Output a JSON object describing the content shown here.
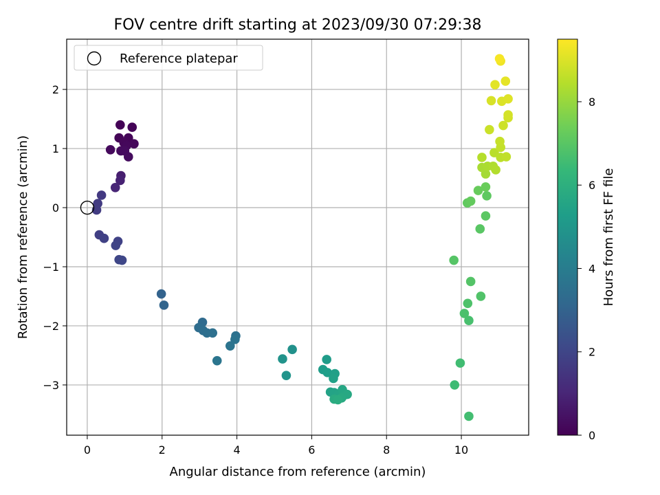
{
  "chart_data": {
    "type": "scatter",
    "title": "FOV centre drift starting at 2023/09/30 07:29:38",
    "xlabel": "Angular distance from reference (arcmin)",
    "ylabel": "Rotation from reference (arcmin)",
    "xlim": [
      -0.55,
      11.8
    ],
    "ylim": [
      -3.85,
      2.85
    ],
    "xticks": [
      0,
      2,
      4,
      6,
      8,
      10
    ],
    "yticks": [
      -3,
      -2,
      -1,
      0,
      1,
      2
    ],
    "grid": true,
    "legend": {
      "position": "top-left",
      "entries": [
        "Reference platepar"
      ]
    },
    "reference_point": {
      "x": 0,
      "y": 0
    },
    "colorbar": {
      "label": "Hours from first FF file",
      "range": [
        0,
        9.5
      ],
      "ticks": [
        0,
        2,
        4,
        6,
        8
      ],
      "colormap": [
        "#440154",
        "#482878",
        "#3e4989",
        "#31688e",
        "#26828e",
        "#1f9e89",
        "#35b779",
        "#6ece58",
        "#b5de2b",
        "#fde725"
      ]
    },
    "points": [
      {
        "x": 0.88,
        "y": 1.4,
        "t": 0.05
      },
      {
        "x": 1.2,
        "y": 1.36,
        "t": 0.08
      },
      {
        "x": 0.85,
        "y": 1.18,
        "t": 0.1
      },
      {
        "x": 1.1,
        "y": 1.18,
        "t": 0.12
      },
      {
        "x": 0.98,
        "y": 1.1,
        "t": 0.15
      },
      {
        "x": 1.25,
        "y": 1.08,
        "t": 0.18
      },
      {
        "x": 1.05,
        "y": 1.05,
        "t": 0.2
      },
      {
        "x": 0.62,
        "y": 0.98,
        "t": 0.22
      },
      {
        "x": 0.9,
        "y": 0.96,
        "t": 0.25
      },
      {
        "x": 1.0,
        "y": 0.96,
        "t": 0.28
      },
      {
        "x": 1.1,
        "y": 0.86,
        "t": 0.3
      },
      {
        "x": 0.9,
        "y": 0.54,
        "t": 0.8
      },
      {
        "x": 0.88,
        "y": 0.46,
        "t": 0.9
      },
      {
        "x": 0.75,
        "y": 0.34,
        "t": 1.0
      },
      {
        "x": 0.38,
        "y": 0.21,
        "t": 1.6
      },
      {
        "x": 0.28,
        "y": 0.07,
        "t": 1.65
      },
      {
        "x": 0.25,
        "y": -0.04,
        "t": 1.7
      },
      {
        "x": 0.32,
        "y": -0.46,
        "t": 1.8
      },
      {
        "x": 0.45,
        "y": -0.52,
        "t": 1.85
      },
      {
        "x": 0.82,
        "y": -0.57,
        "t": 1.9
      },
      {
        "x": 0.76,
        "y": -0.64,
        "t": 1.95
      },
      {
        "x": 0.85,
        "y": -0.88,
        "t": 2.0
      },
      {
        "x": 0.93,
        "y": -0.89,
        "t": 2.05
      },
      {
        "x": 1.98,
        "y": -1.46,
        "t": 3.0
      },
      {
        "x": 2.05,
        "y": -1.65,
        "t": 3.05
      },
      {
        "x": 3.08,
        "y": -1.94,
        "t": 3.3
      },
      {
        "x": 2.98,
        "y": -2.03,
        "t": 3.35
      },
      {
        "x": 3.1,
        "y": -2.08,
        "t": 3.4
      },
      {
        "x": 3.2,
        "y": -2.12,
        "t": 3.45
      },
      {
        "x": 3.35,
        "y": -2.12,
        "t": 3.5
      },
      {
        "x": 3.97,
        "y": -2.17,
        "t": 3.55
      },
      {
        "x": 3.95,
        "y": -2.23,
        "t": 3.6
      },
      {
        "x": 3.82,
        "y": -2.34,
        "t": 3.65
      },
      {
        "x": 3.47,
        "y": -2.59,
        "t": 3.7
      },
      {
        "x": 5.48,
        "y": -2.4,
        "t": 4.8
      },
      {
        "x": 5.22,
        "y": -2.56,
        "t": 4.85
      },
      {
        "x": 5.32,
        "y": -2.84,
        "t": 4.9
      },
      {
        "x": 6.4,
        "y": -2.57,
        "t": 5.2
      },
      {
        "x": 6.3,
        "y": -2.74,
        "t": 5.25
      },
      {
        "x": 6.42,
        "y": -2.79,
        "t": 5.3
      },
      {
        "x": 6.62,
        "y": -2.81,
        "t": 5.35
      },
      {
        "x": 6.58,
        "y": -2.89,
        "t": 5.4
      },
      {
        "x": 6.5,
        "y": -3.12,
        "t": 5.45
      },
      {
        "x": 6.6,
        "y": -3.13,
        "t": 5.5
      },
      {
        "x": 6.72,
        "y": -3.15,
        "t": 5.55
      },
      {
        "x": 6.82,
        "y": -3.08,
        "t": 5.6
      },
      {
        "x": 6.85,
        "y": -3.18,
        "t": 5.65
      },
      {
        "x": 6.95,
        "y": -3.16,
        "t": 5.7
      },
      {
        "x": 6.8,
        "y": -3.22,
        "t": 5.75
      },
      {
        "x": 6.6,
        "y": -3.24,
        "t": 5.8
      },
      {
        "x": 6.7,
        "y": -3.25,
        "t": 5.85
      },
      {
        "x": 9.82,
        "y": -3.0,
        "t": 6.5
      },
      {
        "x": 9.97,
        "y": -2.63,
        "t": 6.55
      },
      {
        "x": 10.2,
        "y": -3.53,
        "t": 6.6
      },
      {
        "x": 10.2,
        "y": -1.91,
        "t": 6.7
      },
      {
        "x": 10.08,
        "y": -1.79,
        "t": 6.75
      },
      {
        "x": 10.17,
        "y": -1.62,
        "t": 6.8
      },
      {
        "x": 10.52,
        "y": -1.5,
        "t": 6.85
      },
      {
        "x": 10.25,
        "y": -1.25,
        "t": 6.9
      },
      {
        "x": 9.8,
        "y": -0.89,
        "t": 6.95
      },
      {
        "x": 10.5,
        "y": -0.36,
        "t": 7.0
      },
      {
        "x": 10.65,
        "y": -0.14,
        "t": 7.05
      },
      {
        "x": 10.68,
        "y": 0.2,
        "t": 7.1
      },
      {
        "x": 10.16,
        "y": 0.08,
        "t": 7.15
      },
      {
        "x": 10.25,
        "y": 0.11,
        "t": 7.2
      },
      {
        "x": 10.45,
        "y": 0.29,
        "t": 7.25
      },
      {
        "x": 10.65,
        "y": 0.35,
        "t": 7.3
      },
      {
        "x": 10.65,
        "y": 0.57,
        "t": 8.2
      },
      {
        "x": 10.55,
        "y": 0.68,
        "t": 8.25
      },
      {
        "x": 10.7,
        "y": 0.7,
        "t": 8.3
      },
      {
        "x": 10.85,
        "y": 0.7,
        "t": 8.35
      },
      {
        "x": 10.92,
        "y": 0.64,
        "t": 8.4
      },
      {
        "x": 10.55,
        "y": 0.85,
        "t": 8.45
      },
      {
        "x": 10.88,
        "y": 0.93,
        "t": 8.5
      },
      {
        "x": 11.05,
        "y": 0.85,
        "t": 8.55
      },
      {
        "x": 11.2,
        "y": 0.86,
        "t": 8.6
      },
      {
        "x": 11.05,
        "y": 1.02,
        "t": 8.65
      },
      {
        "x": 11.03,
        "y": 1.12,
        "t": 8.7
      },
      {
        "x": 10.75,
        "y": 1.32,
        "t": 8.75
      },
      {
        "x": 11.12,
        "y": 1.39,
        "t": 8.8
      },
      {
        "x": 11.25,
        "y": 1.52,
        "t": 8.85
      },
      {
        "x": 11.25,
        "y": 1.57,
        "t": 8.9
      },
      {
        "x": 10.8,
        "y": 1.81,
        "t": 8.95
      },
      {
        "x": 11.08,
        "y": 1.8,
        "t": 9.0
      },
      {
        "x": 11.25,
        "y": 1.84,
        "t": 9.05
      },
      {
        "x": 10.9,
        "y": 2.08,
        "t": 9.1
      },
      {
        "x": 11.18,
        "y": 2.14,
        "t": 9.15
      },
      {
        "x": 11.05,
        "y": 2.48,
        "t": 9.3
      },
      {
        "x": 11.02,
        "y": 2.52,
        "t": 9.4
      }
    ]
  }
}
